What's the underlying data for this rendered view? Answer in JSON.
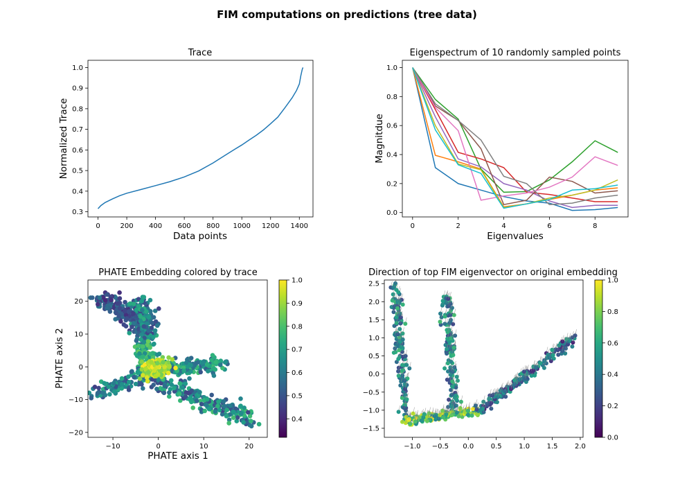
{
  "suptitle": "FIM computations on predictions (tree data)",
  "chart_data": [
    {
      "type": "line",
      "title": "Trace",
      "xlabel": "Data points",
      "ylabel": "Normalized Trace",
      "xlim": [
        -70,
        1495
      ],
      "ylim": [
        0.275,
        1.035
      ],
      "xticks": [
        0,
        200,
        400,
        600,
        800,
        1000,
        1200,
        1400
      ],
      "yticks": [
        0.3,
        0.4,
        0.5,
        0.6,
        0.7,
        0.8,
        0.9,
        1.0
      ],
      "series": [
        {
          "color": "#1f77b4",
          "x": [
            0,
            20,
            50,
            100,
            150,
            200,
            300,
            400,
            500,
            600,
            700,
            800,
            850,
            900,
            950,
            1000,
            1050,
            1100,
            1150,
            1200,
            1250,
            1300,
            1350,
            1380,
            1400,
            1410,
            1420,
            1425
          ],
          "y": [
            0.315,
            0.33,
            0.345,
            0.362,
            0.378,
            0.39,
            0.408,
            0.427,
            0.446,
            0.469,
            0.498,
            0.537,
            0.559,
            0.581,
            0.603,
            0.624,
            0.648,
            0.671,
            0.697,
            0.727,
            0.759,
            0.805,
            0.853,
            0.888,
            0.92,
            0.958,
            0.99,
            1.0
          ]
        }
      ]
    },
    {
      "type": "line",
      "title": "Eigenspectrum of 10 randomly sampled points",
      "xlabel": "Eigenvalues",
      "ylabel": "Magnitdue",
      "xlim": [
        -0.45,
        9.45
      ],
      "ylim": [
        -0.03,
        1.05
      ],
      "xticks": [
        0,
        2,
        4,
        6,
        8
      ],
      "yticks": [
        0.0,
        0.2,
        0.4,
        0.6,
        0.8,
        1.0
      ],
      "x": [
        0,
        1,
        2,
        3,
        4,
        5,
        6,
        7,
        8,
        9
      ],
      "series": [
        {
          "color": "#1f77b4",
          "values": [
            1.0,
            0.31,
            0.2,
            0.155,
            0.11,
            0.08,
            0.065,
            0.015,
            0.02,
            0.035
          ]
        },
        {
          "color": "#ff7f0e",
          "values": [
            1.0,
            0.395,
            0.35,
            0.3,
            0.04,
            0.06,
            0.09,
            0.12,
            0.155,
            0.17
          ]
        },
        {
          "color": "#2ca02c",
          "values": [
            1.0,
            0.78,
            0.645,
            0.3,
            0.14,
            0.145,
            0.225,
            0.35,
            0.495,
            0.415
          ]
        },
        {
          "color": "#d62728",
          "values": [
            1.0,
            0.71,
            0.415,
            0.37,
            0.31,
            0.14,
            0.125,
            0.1,
            0.075,
            0.075
          ]
        },
        {
          "color": "#9467bd",
          "values": [
            1.0,
            0.66,
            0.37,
            0.315,
            0.2,
            0.155,
            0.08,
            0.035,
            0.05,
            0.05
          ]
        },
        {
          "color": "#8c564b",
          "values": [
            1.0,
            0.735,
            0.635,
            0.44,
            0.055,
            0.085,
            0.245,
            0.215,
            0.135,
            0.15
          ]
        },
        {
          "color": "#e377c2",
          "values": [
            1.0,
            0.725,
            0.565,
            0.085,
            0.115,
            0.135,
            0.175,
            0.245,
            0.385,
            0.325
          ]
        },
        {
          "color": "#7f7f7f",
          "values": [
            1.0,
            0.75,
            0.635,
            0.5,
            0.25,
            0.2,
            0.055,
            0.065,
            0.1,
            0.12
          ]
        },
        {
          "color": "#bcbd22",
          "values": [
            1.0,
            0.6,
            0.335,
            0.295,
            0.035,
            0.06,
            0.1,
            0.12,
            0.155,
            0.225
          ]
        },
        {
          "color": "#17becf",
          "values": [
            1.0,
            0.57,
            0.33,
            0.27,
            0.03,
            0.06,
            0.09,
            0.155,
            0.165,
            0.19
          ]
        }
      ]
    },
    {
      "type": "scatter",
      "title": "PHATE Embedding colored by trace",
      "xlabel": "PHATE axis 1",
      "ylabel": "PHATE axis 2",
      "xlim": [
        -15.5,
        24
      ],
      "ylim": [
        -21.5,
        26.5
      ],
      "xticks": [
        -10,
        0,
        10,
        20
      ],
      "yticks": [
        -20,
        -10,
        0,
        10,
        20
      ],
      "colorbar": {
        "colormap": "viridis",
        "min": 0.32,
        "max": 1.0,
        "ticks": [
          0.4,
          0.5,
          0.6,
          0.7,
          0.8,
          0.9,
          1.0
        ]
      },
      "branches": [
        {
          "from": [
            -13,
            21
          ],
          "to": [
            -3,
            14
          ],
          "trace_range": [
            0.4,
            0.6
          ],
          "count": 200
        },
        {
          "from": [
            -4,
            20
          ],
          "to": [
            -3,
            6
          ],
          "trace_range": [
            0.45,
            0.75
          ],
          "count": 170
        },
        {
          "from": [
            -3,
            6
          ],
          "to": [
            -1,
            -1
          ],
          "trace_range": [
            0.65,
            0.85
          ],
          "count": 110
        },
        {
          "from": [
            -1,
            -1
          ],
          "to": [
            14,
            1
          ],
          "trace_range": [
            0.5,
            0.8
          ],
          "count": 170
        },
        {
          "from": [
            -2,
            -3
          ],
          "to": [
            20,
            -16
          ],
          "trace_range": [
            0.45,
            0.8
          ],
          "count": 250
        },
        {
          "from": [
            -2,
            -2
          ],
          "to": [
            -14,
            -8
          ],
          "trace_range": [
            0.45,
            0.75
          ],
          "count": 110
        },
        {
          "from": [
            -2,
            -1
          ],
          "to": [
            1,
            0
          ],
          "trace_range": [
            0.85,
            1.0
          ],
          "count": 120
        }
      ]
    },
    {
      "type": "scatter",
      "title": "Direction of top FIM eigenvector on original embedding",
      "xlabel": "",
      "ylabel": "",
      "xlim": [
        -1.5,
        2.05
      ],
      "ylim": [
        -1.75,
        2.6
      ],
      "xticks": [
        -1.0,
        -0.5,
        0.0,
        0.5,
        1.0,
        1.5,
        2.0
      ],
      "yticks": [
        -1.5,
        -1.0,
        -0.5,
        0.0,
        0.5,
        1.0,
        1.5,
        2.0,
        2.5
      ],
      "colorbar": {
        "colormap": "viridis",
        "min": 0.0,
        "max": 1.0,
        "ticks": [
          0.0,
          0.2,
          0.4,
          0.6,
          0.8,
          1.0
        ]
      },
      "branches": [
        {
          "from": [
            -1.3,
            2.45
          ],
          "to": [
            -1.1,
            -1.35
          ],
          "value_range": [
            0.2,
            0.7
          ],
          "count": 160
        },
        {
          "from": [
            -0.4,
            2.2
          ],
          "to": [
            -0.25,
            -1.0
          ],
          "value_range": [
            0.2,
            0.7
          ],
          "count": 140
        },
        {
          "from": [
            -1.1,
            -1.3
          ],
          "to": [
            0.2,
            -1.0
          ],
          "value_range": [
            0.4,
            1.0
          ],
          "count": 150
        },
        {
          "from": [
            0.2,
            -1.0
          ],
          "to": [
            1.9,
            1.0
          ],
          "value_range": [
            0.1,
            0.6
          ],
          "count": 200
        }
      ]
    }
  ]
}
